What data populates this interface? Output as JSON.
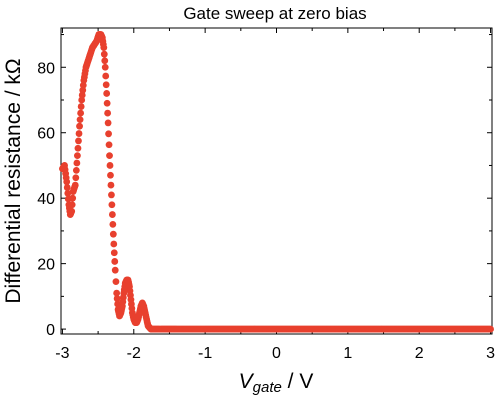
{
  "chart_data": {
    "type": "scatter",
    "title": "Gate sweep at zero bias",
    "xlabel_main": "V",
    "xlabel_sub": "gate",
    "xlabel_unit": " / V",
    "ylabel": "Differential resistance / kΩ",
    "xlim": [
      -3.02,
      3.02
    ],
    "ylim": [
      -1.5,
      92
    ],
    "x_ticks": [
      -3,
      -2,
      -1,
      0,
      1,
      2,
      3
    ],
    "x_tick_labels": [
      "-3",
      "-2",
      "-1",
      "0",
      "1",
      "2",
      "3"
    ],
    "y_ticks": [
      0,
      20,
      40,
      60,
      80
    ],
    "y_tick_labels": [
      "0",
      "20",
      "40",
      "60",
      "80"
    ],
    "grid": false,
    "marker_color": "#e8402e",
    "series": [
      {
        "x": [
          -3.0,
          -2.97,
          -2.94,
          -2.91,
          -2.89,
          -2.87,
          -2.85,
          -2.82,
          -2.79,
          -2.76,
          -2.73,
          -2.7,
          -2.67,
          -2.64,
          -2.61,
          -2.58,
          -2.55,
          -2.52,
          -2.49,
          -2.46,
          -2.44,
          -2.42,
          -2.4,
          -2.38,
          -2.36,
          -2.34,
          -2.32,
          -2.3,
          -2.28,
          -2.26,
          -2.24,
          -2.22,
          -2.2,
          -2.18,
          -2.16,
          -2.14,
          -2.12,
          -2.1,
          -2.08,
          -2.06,
          -2.04,
          -2.02,
          -2.0,
          -1.98,
          -1.96,
          -1.94,
          -1.92,
          -1.9,
          -1.88,
          -1.86,
          -1.84,
          -1.82,
          -1.8,
          -1.78,
          -1.76,
          -1.74,
          -1.72,
          -1.7,
          -1.68,
          -1.66,
          -1.64,
          -1.62,
          -1.6,
          -1.58,
          -1.56,
          -1.54,
          -1.52,
          -1.5,
          -1.48,
          -1.46,
          -1.44,
          -1.42,
          -1.4,
          -1.35,
          -1.3,
          -1.25,
          -1.2,
          -1.15,
          -1.1,
          -1.05,
          -1.0,
          -0.8,
          -0.6,
          -0.4,
          -0.2,
          0.0,
          0.2,
          0.4,
          0.6,
          0.8,
          1.0,
          1.2,
          1.4,
          1.6,
          1.8,
          2.0,
          2.2,
          2.4,
          2.6,
          2.8,
          3.0
        ],
        "y": [
          49,
          50,
          45,
          38,
          35,
          36,
          42,
          44,
          53,
          62,
          70,
          76,
          80,
          82,
          84,
          86,
          87,
          88,
          90,
          90,
          89,
          86,
          80,
          72,
          63,
          53,
          44,
          35,
          26,
          18,
          11,
          6,
          4,
          5,
          7,
          11,
          14,
          15,
          15,
          13,
          9,
          5,
          3,
          2,
          2,
          3,
          5,
          7,
          8,
          7,
          5,
          3,
          1,
          0.5,
          0,
          0,
          0,
          0,
          0,
          0,
          0,
          0,
          0,
          0,
          0,
          0,
          0,
          0,
          0,
          0,
          0,
          0,
          0,
          0,
          0,
          0,
          0,
          0,
          0,
          0,
          0,
          0,
          0,
          0,
          0,
          0,
          0,
          0,
          0,
          0,
          0,
          0,
          0,
          0,
          0,
          0,
          0,
          0,
          0,
          0,
          0
        ]
      }
    ]
  }
}
